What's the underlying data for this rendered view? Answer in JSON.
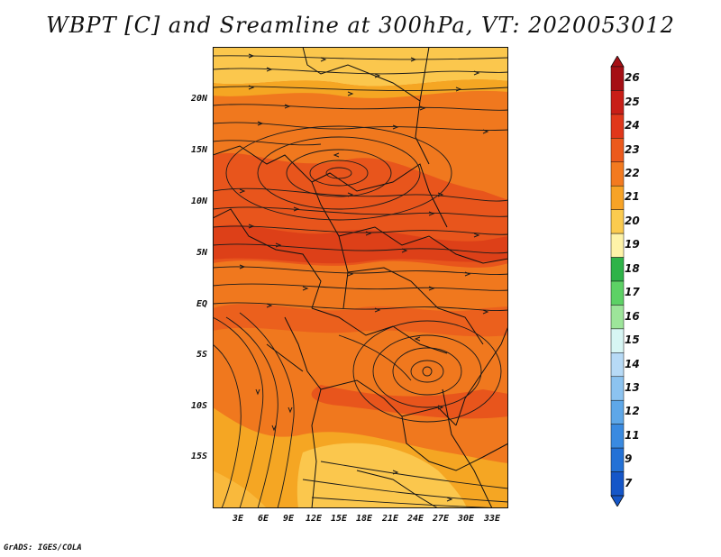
{
  "title": "WBPT [C] and Sreamline at 300hPa, VT: 2020053012",
  "footer": "GrADS: IGES/COLA",
  "map": {
    "lat_ticks": [
      "20N",
      "15N",
      "10N",
      "5N",
      "EQ",
      "5S",
      "10S",
      "15S"
    ],
    "lon_ticks": [
      "3E",
      "6E",
      "9E",
      "12E",
      "15E",
      "18E",
      "21E",
      "24E",
      "27E",
      "30E",
      "33E"
    ],
    "field_colors": {
      "c20": "#fbc74d",
      "c21": "#f5a623",
      "c22": "#f0781e",
      "c23": "#e8551c",
      "c24": "#d93a17"
    }
  },
  "colorbar": {
    "labels": [
      "26",
      "25",
      "24",
      "23",
      "22",
      "21",
      "20",
      "19",
      "18",
      "17",
      "16",
      "15",
      "14",
      "13",
      "12",
      "11",
      "9",
      "7"
    ],
    "colors": [
      "#a50f15",
      "#c81e17",
      "#e0371a",
      "#ec5a1d",
      "#f37a20",
      "#f7a326",
      "#fbcb4f",
      "#fef3a8",
      "#2eb348",
      "#5dd165",
      "#9de59a",
      "#d7f6f4",
      "#b7daf6",
      "#8cc3f0",
      "#5ea7e8",
      "#3a8ae0",
      "#2371d6",
      "#1556c8"
    ]
  },
  "chart_data": {
    "type": "heatmap",
    "title": "WBPT [C] and Sreamline at 300hPa, VT: 2020053012",
    "variable": "WBPT [C]",
    "level": "300hPa",
    "valid_time": "2020053012",
    "x_ticks": [
      "3E",
      "6E",
      "9E",
      "12E",
      "15E",
      "18E",
      "21E",
      "24E",
      "27E",
      "30E",
      "33E"
    ],
    "y_ticks": [
      "20N",
      "15N",
      "10N",
      "5N",
      "EQ",
      "5S",
      "10S",
      "15S"
    ],
    "xlim": [
      0,
      35
    ],
    "ylim": [
      -19.5,
      25
    ],
    "colorbar_levels": [
      7,
      9,
      11,
      12,
      13,
      14,
      15,
      16,
      17,
      18,
      19,
      20,
      21,
      22,
      23,
      24,
      25,
      26
    ],
    "value_range_shown": [
      20,
      24
    ]
  }
}
